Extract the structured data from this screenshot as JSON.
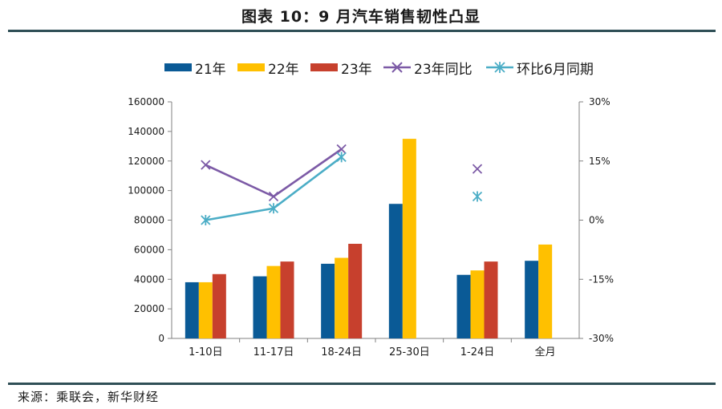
{
  "page": {
    "title": "图表 10：9 月汽车销售韧性凸显",
    "source": "来源：乘联会，新华财经"
  },
  "chart_data": {
    "type": "bar",
    "categories": [
      "1-10日",
      "11-17日",
      "18-24日",
      "25-30日",
      "1-24日",
      "全月"
    ],
    "series": [
      {
        "name": "21年",
        "kind": "bar",
        "axis": "left",
        "color": "#0a5a96",
        "values": [
          38000,
          42000,
          50500,
          91000,
          43000,
          52500
        ]
      },
      {
        "name": "22年",
        "kind": "bar",
        "axis": "left",
        "color": "#ffc000",
        "values": [
          38000,
          49000,
          54500,
          135000,
          46000,
          63500
        ]
      },
      {
        "name": "23年",
        "kind": "bar",
        "axis": "left",
        "color": "#c7402d",
        "values": [
          43500,
          52000,
          64000,
          null,
          52000,
          null
        ]
      },
      {
        "name": "23年同比",
        "kind": "line",
        "axis": "right",
        "color": "#7c5aa6",
        "marker": "x",
        "values": [
          14,
          6,
          18,
          null,
          13,
          null
        ]
      },
      {
        "name": "环比6月同期",
        "kind": "line",
        "axis": "right",
        "color": "#4badc6",
        "marker": "star",
        "values": [
          0,
          3,
          16,
          null,
          6,
          null
        ]
      }
    ],
    "y_left": {
      "min": 0,
      "max": 160000,
      "step": 20000,
      "ticks": [
        "0",
        "20000",
        "40000",
        "60000",
        "80000",
        "100000",
        "120000",
        "140000",
        "160000"
      ]
    },
    "y_right": {
      "min": -30,
      "max": 30,
      "step": 15,
      "ticks": [
        "-30%",
        "-15%",
        "0%",
        "15%",
        "30%"
      ]
    },
    "legend_position": "top",
    "grid": false
  }
}
